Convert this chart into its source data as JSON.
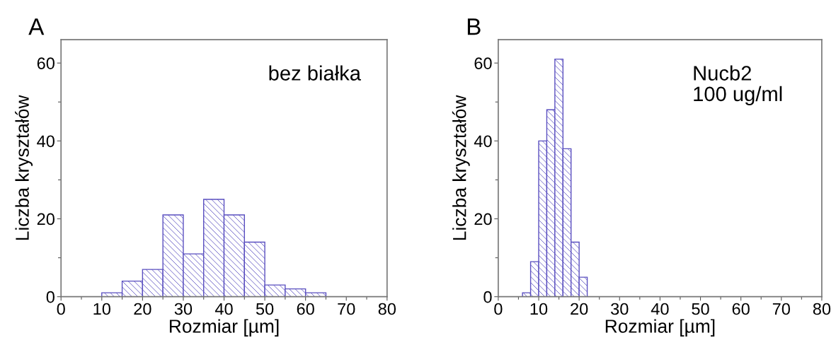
{
  "chart_data": [
    {
      "type": "histogram",
      "title": "A",
      "xlabel": "Rozmiar [µm]",
      "ylabel": "Liczba kryształów",
      "annotations": [
        "bez białka"
      ],
      "bins": [
        10,
        15,
        20,
        25,
        30,
        35,
        40,
        45,
        50,
        55,
        60,
        65
      ],
      "values": [
        1,
        4,
        7,
        21,
        11,
        25,
        21,
        14,
        3,
        2,
        1
      ],
      "color": "#5a4fc0",
      "xlim": [
        0,
        80
      ],
      "xticks": [
        0,
        10,
        20,
        30,
        40,
        50,
        60,
        70,
        80
      ],
      "ylim": [
        0,
        66
      ],
      "yticks": [
        0,
        20,
        40,
        60
      ],
      "grid": false
    },
    {
      "type": "histogram",
      "title": "B",
      "xlabel": "Rozmiar [µm]",
      "ylabel": "Liczba kryształów",
      "annotations": [
        "Nucb2\n100 ug/ml"
      ],
      "bins": [
        6,
        8,
        10,
        12,
        14,
        16,
        18,
        20,
        22
      ],
      "values": [
        1,
        9,
        40,
        48,
        61,
        38,
        14,
        5
      ],
      "color": "#5a4fc0",
      "xlim": [
        0,
        80
      ],
      "xticks": [
        0,
        10,
        20,
        30,
        40,
        50,
        60,
        70,
        80
      ],
      "ylim": [
        0,
        66
      ],
      "yticks": [
        0,
        20,
        40,
        60
      ],
      "grid": false
    }
  ]
}
